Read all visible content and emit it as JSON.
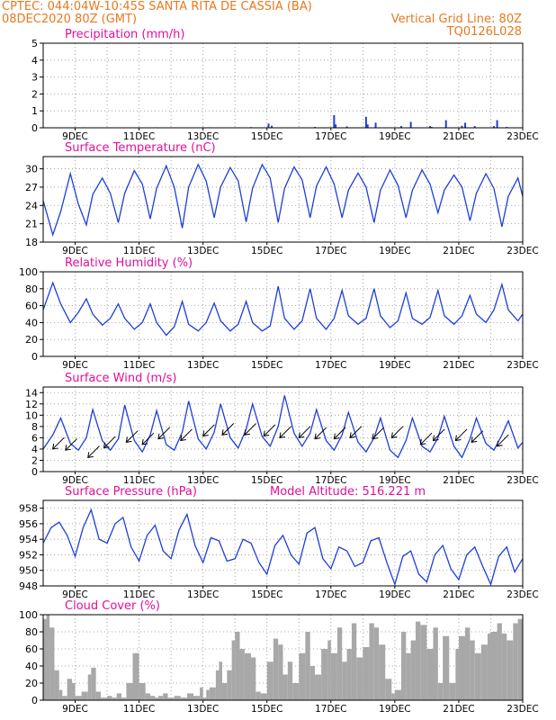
{
  "header": {
    "line1": "CPTEC:   044:04W-10:45S   SANTA RITA DE CASSIA (BA)",
    "line2": "08DEC2020 80Z (GMT)",
    "grid_note": "Vertical Grid Line: 80Z",
    "code": "TQ0126L028"
  },
  "colors": {
    "header": "#e87820",
    "title": "#e0109a",
    "series": "#1f3ed8",
    "wind": "#000000",
    "cloud": "#a8a8a8",
    "grid": "#909090"
  },
  "x_ticks": [
    "9DEC",
    "11DEC",
    "13DEC",
    "15DEC",
    "17DEC",
    "19DEC",
    "21DEC",
    "23DEC"
  ],
  "chart_data": [
    {
      "id": "precip",
      "type": "bar",
      "title": "Precipitation (mm/h)",
      "ylim": [
        0,
        5
      ],
      "yticks": [
        0,
        1,
        2,
        3,
        4,
        5
      ],
      "xlim": [
        8.0,
        23.0
      ],
      "x": [
        8.8,
        9.3,
        10.2,
        11.5,
        12.4,
        13.2,
        14.5,
        15.05,
        15.15,
        16.5,
        17.1,
        17.15,
        17.5,
        18.1,
        18.15,
        18.4,
        19.2,
        19.5,
        20.1,
        20.15,
        20.6,
        21.1,
        21.2,
        21.5,
        22.1,
        22.2,
        22.5
      ],
      "values": [
        0.02,
        0.03,
        0.02,
        0.03,
        0.02,
        0.03,
        0.04,
        0.25,
        0.12,
        0.05,
        0.75,
        0.2,
        0.08,
        0.65,
        0.2,
        0.3,
        0.1,
        0.35,
        0.1,
        0.05,
        0.45,
        0.12,
        0.3,
        0.1,
        0.1,
        0.45,
        0.05
      ]
    },
    {
      "id": "temp",
      "type": "line",
      "title": "Surface Temperature (nC)",
      "ylim": [
        18,
        32
      ],
      "yticks": [
        18,
        21,
        24,
        27,
        30
      ],
      "xlim": [
        8.0,
        23.0
      ],
      "x": [
        8.0,
        8.3,
        8.55,
        8.85,
        9.1,
        9.35,
        9.55,
        9.85,
        10.1,
        10.35,
        10.55,
        10.85,
        11.1,
        11.35,
        11.55,
        11.85,
        12.1,
        12.35,
        12.55,
        12.85,
        13.1,
        13.35,
        13.55,
        13.85,
        14.1,
        14.35,
        14.55,
        14.85,
        15.1,
        15.35,
        15.55,
        15.85,
        16.1,
        16.35,
        16.55,
        16.85,
        17.1,
        17.35,
        17.55,
        17.85,
        18.1,
        18.35,
        18.55,
        18.85,
        19.1,
        19.35,
        19.55,
        19.85,
        20.1,
        20.35,
        20.55,
        20.85,
        21.1,
        21.35,
        21.55,
        21.85,
        22.1,
        22.35,
        22.55,
        22.85,
        23.0
      ],
      "values": [
        24.8,
        19.2,
        23.0,
        29.2,
        24.2,
        20.8,
        25.8,
        28.5,
        26.0,
        21.2,
        26.0,
        29.7,
        27.5,
        21.8,
        26.8,
        30.5,
        27.0,
        20.3,
        27.0,
        30.7,
        28.0,
        22.0,
        27.0,
        30.2,
        28.0,
        21.3,
        26.8,
        30.7,
        28.5,
        21.2,
        26.8,
        30.3,
        28.2,
        22.0,
        27.2,
        30.3,
        27.5,
        22.0,
        26.5,
        29.3,
        27.0,
        21.2,
        26.5,
        29.8,
        27.3,
        22.0,
        26.5,
        29.8,
        27.5,
        22.8,
        26.5,
        29.0,
        27.0,
        21.5,
        26.0,
        29.2,
        26.8,
        20.5,
        25.5,
        28.5,
        25.5
      ]
    },
    {
      "id": "rh",
      "type": "line",
      "title": "Relative Humidity (%)",
      "ylim": [
        0,
        100
      ],
      "yticks": [
        0,
        20,
        40,
        60,
        80,
        100
      ],
      "xlim": [
        8.0,
        23.0
      ],
      "x": [
        8.0,
        8.3,
        8.55,
        8.85,
        9.1,
        9.35,
        9.55,
        9.85,
        10.1,
        10.35,
        10.55,
        10.85,
        11.1,
        11.35,
        11.55,
        11.85,
        12.1,
        12.35,
        12.55,
        12.85,
        13.1,
        13.35,
        13.55,
        13.85,
        14.1,
        14.35,
        14.55,
        14.85,
        15.1,
        15.35,
        15.55,
        15.85,
        16.1,
        16.35,
        16.55,
        16.85,
        17.1,
        17.35,
        17.55,
        17.85,
        18.1,
        18.35,
        18.55,
        18.85,
        19.1,
        19.35,
        19.55,
        19.85,
        20.1,
        20.35,
        20.55,
        20.85,
        21.1,
        21.35,
        21.55,
        21.85,
        22.1,
        22.35,
        22.55,
        22.85,
        23.0
      ],
      "values": [
        55,
        87,
        62,
        40,
        52,
        68,
        50,
        37,
        45,
        62,
        45,
        32,
        40,
        62,
        40,
        25,
        35,
        65,
        38,
        30,
        40,
        63,
        42,
        30,
        38,
        65,
        40,
        30,
        36,
        83,
        45,
        32,
        42,
        80,
        45,
        32,
        45,
        78,
        48,
        38,
        45,
        80,
        48,
        34,
        42,
        75,
        45,
        38,
        46,
        78,
        48,
        38,
        48,
        72,
        50,
        40,
        55,
        85,
        55,
        42,
        50
      ]
    },
    {
      "id": "wind",
      "type": "line",
      "title": "Surface Wind (m/s)",
      "ylim": [
        0,
        15
      ],
      "yticks": [
        0,
        2,
        4,
        6,
        8,
        10,
        12,
        14
      ],
      "xlim": [
        8.0,
        23.0
      ],
      "x": [
        8.0,
        8.3,
        8.55,
        8.85,
        9.1,
        9.35,
        9.55,
        9.85,
        10.1,
        10.35,
        10.55,
        10.85,
        11.1,
        11.35,
        11.55,
        11.85,
        12.1,
        12.35,
        12.55,
        12.85,
        13.1,
        13.35,
        13.55,
        13.85,
        14.1,
        14.35,
        14.55,
        14.85,
        15.1,
        15.35,
        15.55,
        15.85,
        16.1,
        16.35,
        16.55,
        16.85,
        17.1,
        17.35,
        17.55,
        17.85,
        18.1,
        18.35,
        18.55,
        18.85,
        19.1,
        19.35,
        19.55,
        19.85,
        20.1,
        20.35,
        20.55,
        20.85,
        21.1,
        21.35,
        21.55,
        21.85,
        22.1,
        22.35,
        22.55,
        22.85,
        23.0
      ],
      "values": [
        4.0,
        6.5,
        9.5,
        5.0,
        3.8,
        6.0,
        11.0,
        5.5,
        3.8,
        5.8,
        11.8,
        5.5,
        3.5,
        6.5,
        10.8,
        4.8,
        3.8,
        7.0,
        12.5,
        5.8,
        4.0,
        7.0,
        12.0,
        6.0,
        4.2,
        7.5,
        12.0,
        6.2,
        4.5,
        8.0,
        13.5,
        6.8,
        4.5,
        6.8,
        11.0,
        5.5,
        3.8,
        6.5,
        10.5,
        5.2,
        3.5,
        6.0,
        9.5,
        3.8,
        2.5,
        5.5,
        9.5,
        4.5,
        3.5,
        6.0,
        9.8,
        4.5,
        2.5,
        5.8,
        9.5,
        5.0,
        3.8,
        6.5,
        9.0,
        4.2,
        5.2
      ],
      "arrows": [
        {
          "x": 8.3,
          "y": 4.0,
          "dir": "NE"
        },
        {
          "x": 8.7,
          "y": 3.8,
          "dir": "NE"
        },
        {
          "x": 9.4,
          "y": 2.5,
          "dir": "NE"
        },
        {
          "x": 9.9,
          "y": 4.2,
          "dir": "NE"
        },
        {
          "x": 10.6,
          "y": 5.2,
          "dir": "NE"
        },
        {
          "x": 11.1,
          "y": 4.8,
          "dir": "NE"
        },
        {
          "x": 11.6,
          "y": 5.8,
          "dir": "NE"
        },
        {
          "x": 12.3,
          "y": 5.5,
          "dir": "NE"
        },
        {
          "x": 13.0,
          "y": 6.3,
          "dir": "NE"
        },
        {
          "x": 13.6,
          "y": 6.5,
          "dir": "NE"
        },
        {
          "x": 14.3,
          "y": 6.5,
          "dir": "NE"
        },
        {
          "x": 14.9,
          "y": 6.3,
          "dir": "NE"
        },
        {
          "x": 15.4,
          "y": 6.0,
          "dir": "NE"
        },
        {
          "x": 16.0,
          "y": 6.0,
          "dir": "NE"
        },
        {
          "x": 16.5,
          "y": 5.8,
          "dir": "NE"
        },
        {
          "x": 17.1,
          "y": 5.8,
          "dir": "NE"
        },
        {
          "x": 17.6,
          "y": 6.0,
          "dir": "NE"
        },
        {
          "x": 18.3,
          "y": 5.8,
          "dir": "NE"
        },
        {
          "x": 18.9,
          "y": 6.0,
          "dir": "NE"
        },
        {
          "x": 19.8,
          "y": 4.8,
          "dir": "NE"
        },
        {
          "x": 20.2,
          "y": 5.5,
          "dir": "NE"
        },
        {
          "x": 20.9,
          "y": 5.5,
          "dir": "NE"
        },
        {
          "x": 21.4,
          "y": 5.2,
          "dir": "NE"
        },
        {
          "x": 22.2,
          "y": 4.5,
          "dir": "NE"
        }
      ]
    },
    {
      "id": "pres",
      "type": "line",
      "title": "Surface Pressure (hPa)",
      "annotation": "Model Altitude: 516.221 m",
      "ylim": [
        948,
        959
      ],
      "yticks": [
        948,
        950,
        952,
        954,
        956,
        958
      ],
      "xlim": [
        8.0,
        23.0
      ],
      "x": [
        8.0,
        8.25,
        8.5,
        8.75,
        9.0,
        9.25,
        9.5,
        9.75,
        10.0,
        10.25,
        10.5,
        10.75,
        11.0,
        11.25,
        11.5,
        11.75,
        12.0,
        12.25,
        12.5,
        12.75,
        13.0,
        13.25,
        13.5,
        13.75,
        14.0,
        14.25,
        14.5,
        14.75,
        15.0,
        15.25,
        15.5,
        15.75,
        16.0,
        16.25,
        16.5,
        16.75,
        17.0,
        17.25,
        17.5,
        17.75,
        18.0,
        18.25,
        18.5,
        18.75,
        19.0,
        19.25,
        19.5,
        19.75,
        20.0,
        20.25,
        20.5,
        20.75,
        21.0,
        21.25,
        21.5,
        21.75,
        22.0,
        22.25,
        22.5,
        22.75,
        23.0
      ],
      "values": [
        953.5,
        955.5,
        956.2,
        954.5,
        951.8,
        955.5,
        957.8,
        954.0,
        953.5,
        956.0,
        956.8,
        953.0,
        951.2,
        954.5,
        955.8,
        952.5,
        951.5,
        955.2,
        957.2,
        953.2,
        951.0,
        954.2,
        953.8,
        951.2,
        951.5,
        954.0,
        953.5,
        951.0,
        949.5,
        953.2,
        954.5,
        952.0,
        950.8,
        954.8,
        955.5,
        951.5,
        950.2,
        953.0,
        952.5,
        950.5,
        951.0,
        953.8,
        954.2,
        951.0,
        948.2,
        951.8,
        952.5,
        949.5,
        948.5,
        952.0,
        953.2,
        950.2,
        948.8,
        952.0,
        953.0,
        950.5,
        948.2,
        951.8,
        953.0,
        949.8,
        951.5
      ]
    },
    {
      "id": "cloud",
      "type": "area",
      "title": "Cloud Cover (%)",
      "ylim": [
        0,
        100
      ],
      "yticks": [
        0,
        20,
        40,
        60,
        80,
        100
      ],
      "xlim": [
        8.0,
        23.0
      ],
      "x": [
        8.0,
        8.1,
        8.2,
        8.35,
        8.5,
        8.6,
        8.75,
        8.9,
        9.0,
        9.2,
        9.4,
        9.5,
        9.65,
        9.8,
        10.0,
        10.15,
        10.3,
        10.45,
        10.6,
        10.8,
        11.0,
        11.2,
        11.35,
        11.5,
        11.6,
        11.75,
        11.9,
        12.1,
        12.3,
        12.5,
        12.7,
        12.9,
        13.0,
        13.1,
        13.2,
        13.4,
        13.5,
        13.6,
        13.75,
        13.9,
        14.0,
        14.15,
        14.3,
        14.5,
        14.65,
        14.8,
        15.0,
        15.2,
        15.35,
        15.5,
        15.65,
        15.8,
        16.0,
        16.2,
        16.35,
        16.5,
        16.7,
        16.9,
        17.0,
        17.2,
        17.35,
        17.5,
        17.65,
        17.8,
        18.0,
        18.2,
        18.35,
        18.5,
        18.7,
        18.9,
        19.0,
        19.2,
        19.35,
        19.5,
        19.65,
        19.8,
        20.0,
        20.2,
        20.35,
        20.5,
        20.7,
        20.9,
        21.0,
        21.2,
        21.35,
        21.5,
        21.7,
        21.9,
        22.0,
        22.2,
        22.35,
        22.5,
        22.7,
        22.85,
        23.0
      ],
      "values": [
        95,
        100,
        85,
        35,
        12,
        5,
        25,
        20,
        5,
        10,
        30,
        38,
        10,
        3,
        5,
        3,
        8,
        3,
        20,
        55,
        20,
        8,
        5,
        3,
        5,
        8,
        3,
        5,
        3,
        8,
        5,
        15,
        3,
        12,
        15,
        35,
        45,
        20,
        35,
        70,
        80,
        60,
        55,
        50,
        10,
        8,
        45,
        72,
        65,
        30,
        45,
        20,
        55,
        80,
        40,
        30,
        60,
        70,
        55,
        85,
        45,
        60,
        90,
        50,
        62,
        90,
        85,
        65,
        25,
        8,
        12,
        80,
        55,
        70,
        92,
        88,
        60,
        85,
        20,
        75,
        20,
        60,
        75,
        85,
        70,
        55,
        65,
        78,
        80,
        90,
        78,
        70,
        90,
        95,
        95
      ]
    }
  ]
}
